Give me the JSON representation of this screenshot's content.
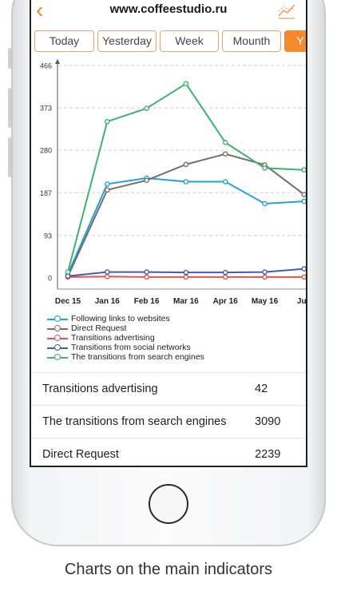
{
  "header": {
    "title": "www.coffeestudio.ru",
    "back_icon": "chevron-left-icon",
    "chart_icon": "line-chart-icon",
    "accent": "#f0852b"
  },
  "tabs": [
    {
      "label": "Today",
      "active": false
    },
    {
      "label": "Yesterday",
      "active": false
    },
    {
      "label": "Week",
      "active": false
    },
    {
      "label": "Mounth",
      "active": false
    },
    {
      "label": "Y",
      "active": true
    }
  ],
  "chart_data": {
    "type": "line",
    "categories": [
      "Dec 15",
      "Jan 16",
      "Feb 16",
      "Mar 16",
      "Apr 16",
      "May 16",
      "Jun"
    ],
    "yticks": [
      0,
      93,
      187,
      280,
      373,
      466
    ],
    "ylim": [
      0,
      466
    ],
    "grid": true,
    "legend_position": "bottom",
    "series": [
      {
        "name": "Following links to websites",
        "color": "#1ea3de",
        "values": [
          8,
          206,
          219,
          211,
          211,
          163,
          168
        ]
      },
      {
        "name": "Direct Request",
        "color": "#7b6b63",
        "values": [
          3,
          193,
          214,
          249,
          272,
          248,
          183
        ]
      },
      {
        "name": "Transitions advertising",
        "color": "#e6534a",
        "values": [
          2,
          3,
          2,
          2,
          2,
          2,
          2
        ]
      },
      {
        "name": "Transitions from social networks",
        "color": "#4a5aa6",
        "values": [
          4,
          13,
          13,
          12,
          12,
          13,
          20
        ]
      },
      {
        "name": "The transitions from search engines",
        "color": "#3cb371",
        "values": [
          13,
          343,
          372,
          426,
          297,
          241,
          237
        ]
      }
    ]
  },
  "table": {
    "rows": [
      {
        "label": "Transitions advertising",
        "value": "42"
      },
      {
        "label": "The transitions from search engines",
        "value": "3090"
      },
      {
        "label": "Direct Request",
        "value": "2239"
      }
    ]
  },
  "caption": "Charts on the main indicators"
}
